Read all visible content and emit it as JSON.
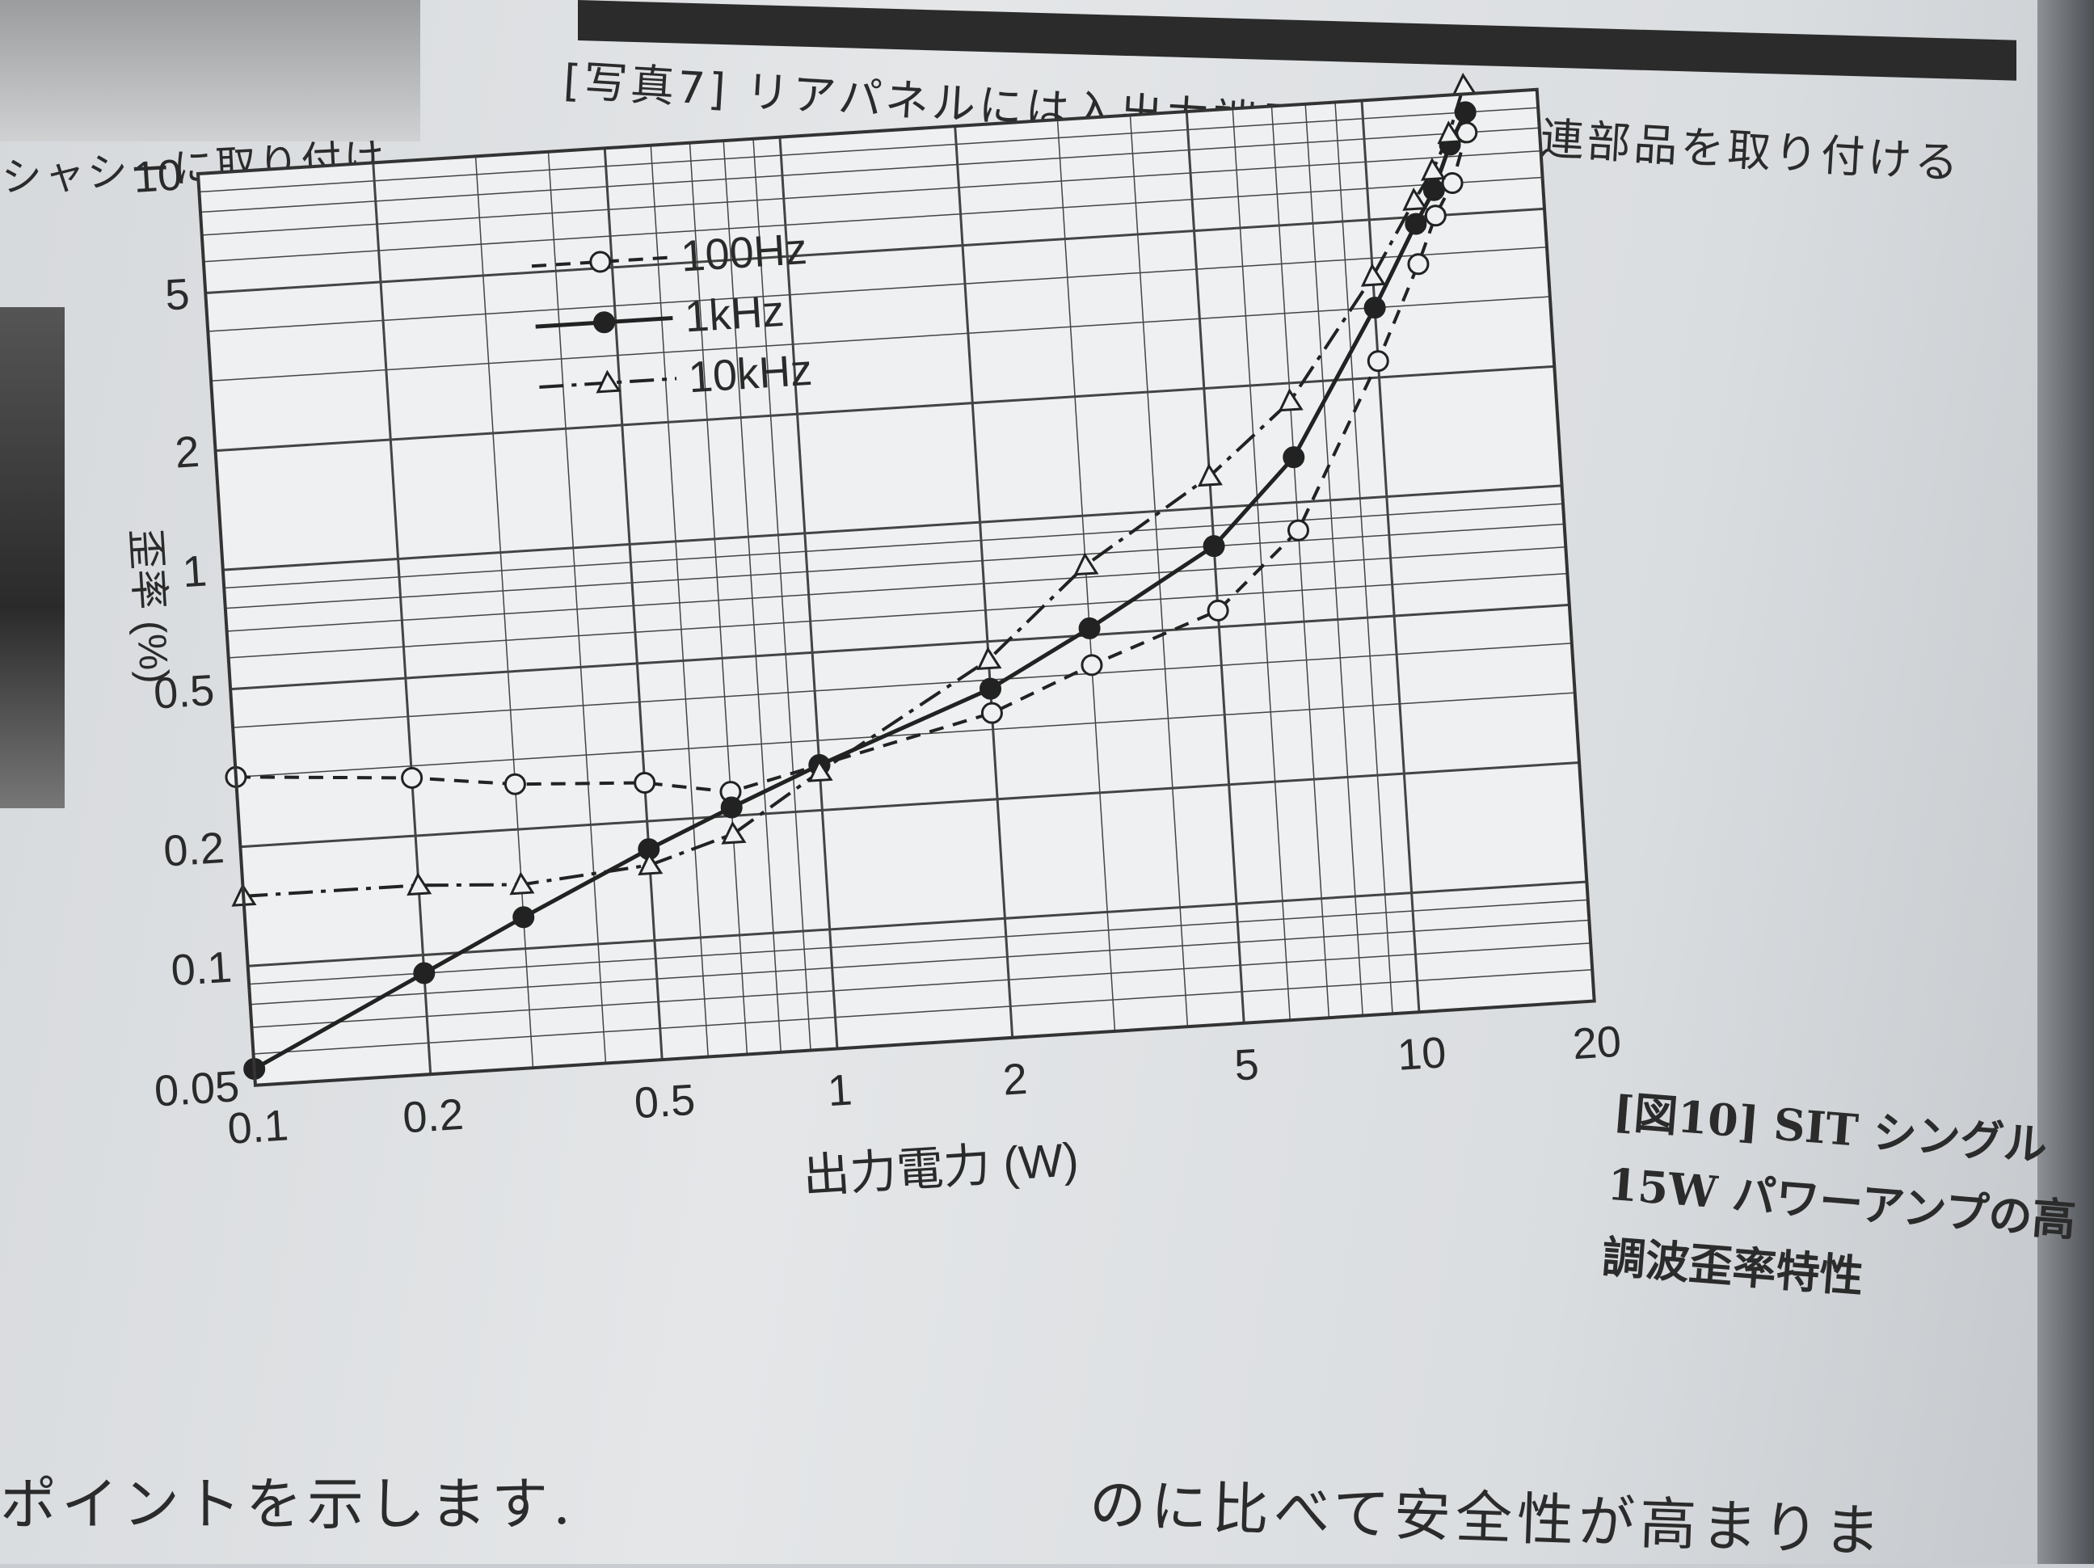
{
  "page": {
    "caption_top": "[写真7]  リアパネルには入出力端子，増幅部関連部品を取り付ける",
    "caption_left": "シャシーに取り付け，",
    "figure_caption": [
      "[図10]  SIT シングル",
      "15W パワーアンプの高",
      "調波歪率特性"
    ],
    "body_text_left": "ポイントを示します.",
    "body_text_right": "のに比べて安全性が高まりま"
  },
  "chart_data": {
    "type": "line",
    "title": "",
    "xlabel": "出力電力 (W)",
    "ylabel": "歪率 (%)",
    "x_scale": "log",
    "y_scale": "log",
    "xlim": [
      0.1,
      20
    ],
    "ylim": [
      0.05,
      10
    ],
    "x_ticks": [
      "0.1",
      "0.2",
      "0.5",
      "1",
      "2",
      "5",
      "10",
      "20"
    ],
    "x_tick_values": [
      0.1,
      0.2,
      0.5,
      1,
      2,
      5,
      10,
      20
    ],
    "y_ticks": [
      "0.05",
      "0.1",
      "0.2",
      "0.5",
      "1",
      "2",
      "5",
      "10"
    ],
    "y_tick_values": [
      0.05,
      0.1,
      0.2,
      0.5,
      1,
      2,
      5,
      10
    ],
    "grid": true,
    "legend_position": "top-left",
    "series": [
      {
        "name": "100Hz",
        "marker": "open-circle",
        "line_style": "dashed",
        "points": [
          [
            0.1,
            0.3
          ],
          [
            0.2,
            0.28
          ],
          [
            0.3,
            0.26
          ],
          [
            0.5,
            0.25
          ],
          [
            0.7,
            0.23
          ],
          [
            1.0,
            0.26
          ],
          [
            2.0,
            0.33
          ],
          [
            3.0,
            0.42
          ],
          [
            5.0,
            0.55
          ],
          [
            7.0,
            0.85
          ],
          [
            10.0,
            2.2
          ],
          [
            12.0,
            3.8
          ],
          [
            13.0,
            5.0
          ],
          [
            14.0,
            6.0
          ],
          [
            15.0,
            8.0
          ]
        ]
      },
      {
        "name": "1kHz",
        "marker": "filled-circle",
        "line_style": "solid",
        "points": [
          [
            0.1,
            0.055
          ],
          [
            0.2,
            0.09
          ],
          [
            0.3,
            0.12
          ],
          [
            0.5,
            0.17
          ],
          [
            0.7,
            0.21
          ],
          [
            1.0,
            0.26
          ],
          [
            2.0,
            0.38
          ],
          [
            3.0,
            0.52
          ],
          [
            5.0,
            0.8
          ],
          [
            7.0,
            1.3
          ],
          [
            10.0,
            3.0
          ],
          [
            12.0,
            4.8
          ],
          [
            13.0,
            5.8
          ],
          [
            14.0,
            7.5
          ],
          [
            15.0,
            9.0
          ]
        ]
      },
      {
        "name": "10kHz",
        "marker": "open-triangle",
        "line_style": "dash-dot",
        "points": [
          [
            0.1,
            0.15
          ],
          [
            0.2,
            0.15
          ],
          [
            0.3,
            0.145
          ],
          [
            0.5,
            0.155
          ],
          [
            0.7,
            0.18
          ],
          [
            1.0,
            0.25
          ],
          [
            2.0,
            0.45
          ],
          [
            3.0,
            0.75
          ],
          [
            5.0,
            1.2
          ],
          [
            7.0,
            1.8
          ],
          [
            10.0,
            3.6
          ],
          [
            12.0,
            5.5
          ],
          [
            13.0,
            6.5
          ],
          [
            14.0,
            8.0
          ],
          [
            15.0,
            10.5
          ]
        ]
      }
    ]
  }
}
